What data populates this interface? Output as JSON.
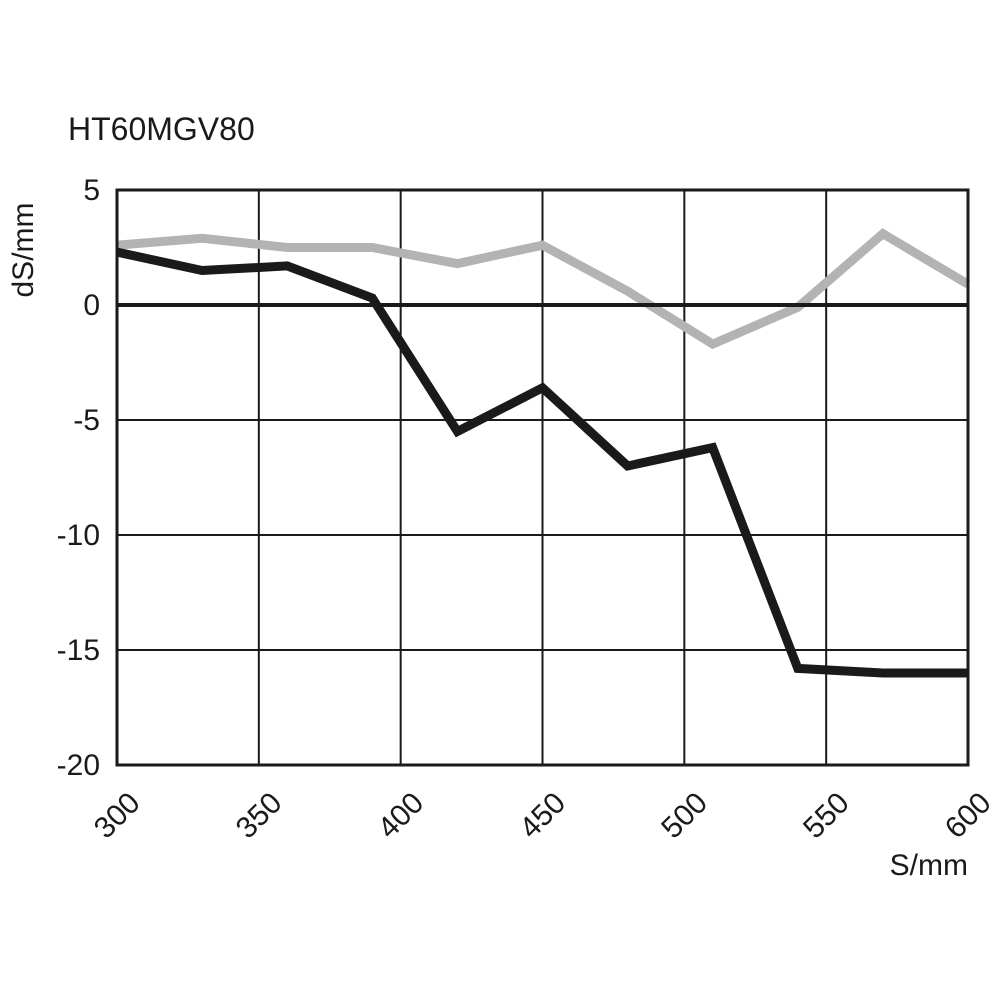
{
  "chart_data": {
    "type": "line",
    "title": "HT60MGV80",
    "xlabel": "S/mm",
    "ylabel": "dS/mm",
    "xlim": [
      300,
      600
    ],
    "ylim": [
      -20,
      5
    ],
    "xticks": [
      300,
      350,
      400,
      450,
      500,
      550,
      600
    ],
    "yticks": [
      5,
      0,
      -5,
      -10,
      -15,
      -20
    ],
    "grid": true,
    "x": [
      300,
      330,
      360,
      390,
      420,
      450,
      480,
      510,
      540,
      570,
      600
    ],
    "series": [
      {
        "color": "#b3b3b3",
        "values": [
          2.6,
          2.9,
          2.5,
          2.5,
          1.8,
          2.6,
          0.6,
          -1.7,
          -0.1,
          3.1,
          0.9
        ]
      },
      {
        "color": "#1a1a1a",
        "values": [
          2.3,
          1.5,
          1.7,
          0.3,
          -5.5,
          -3.6,
          -7.0,
          -6.2,
          -15.8,
          -16.0,
          -16.0
        ]
      }
    ]
  }
}
